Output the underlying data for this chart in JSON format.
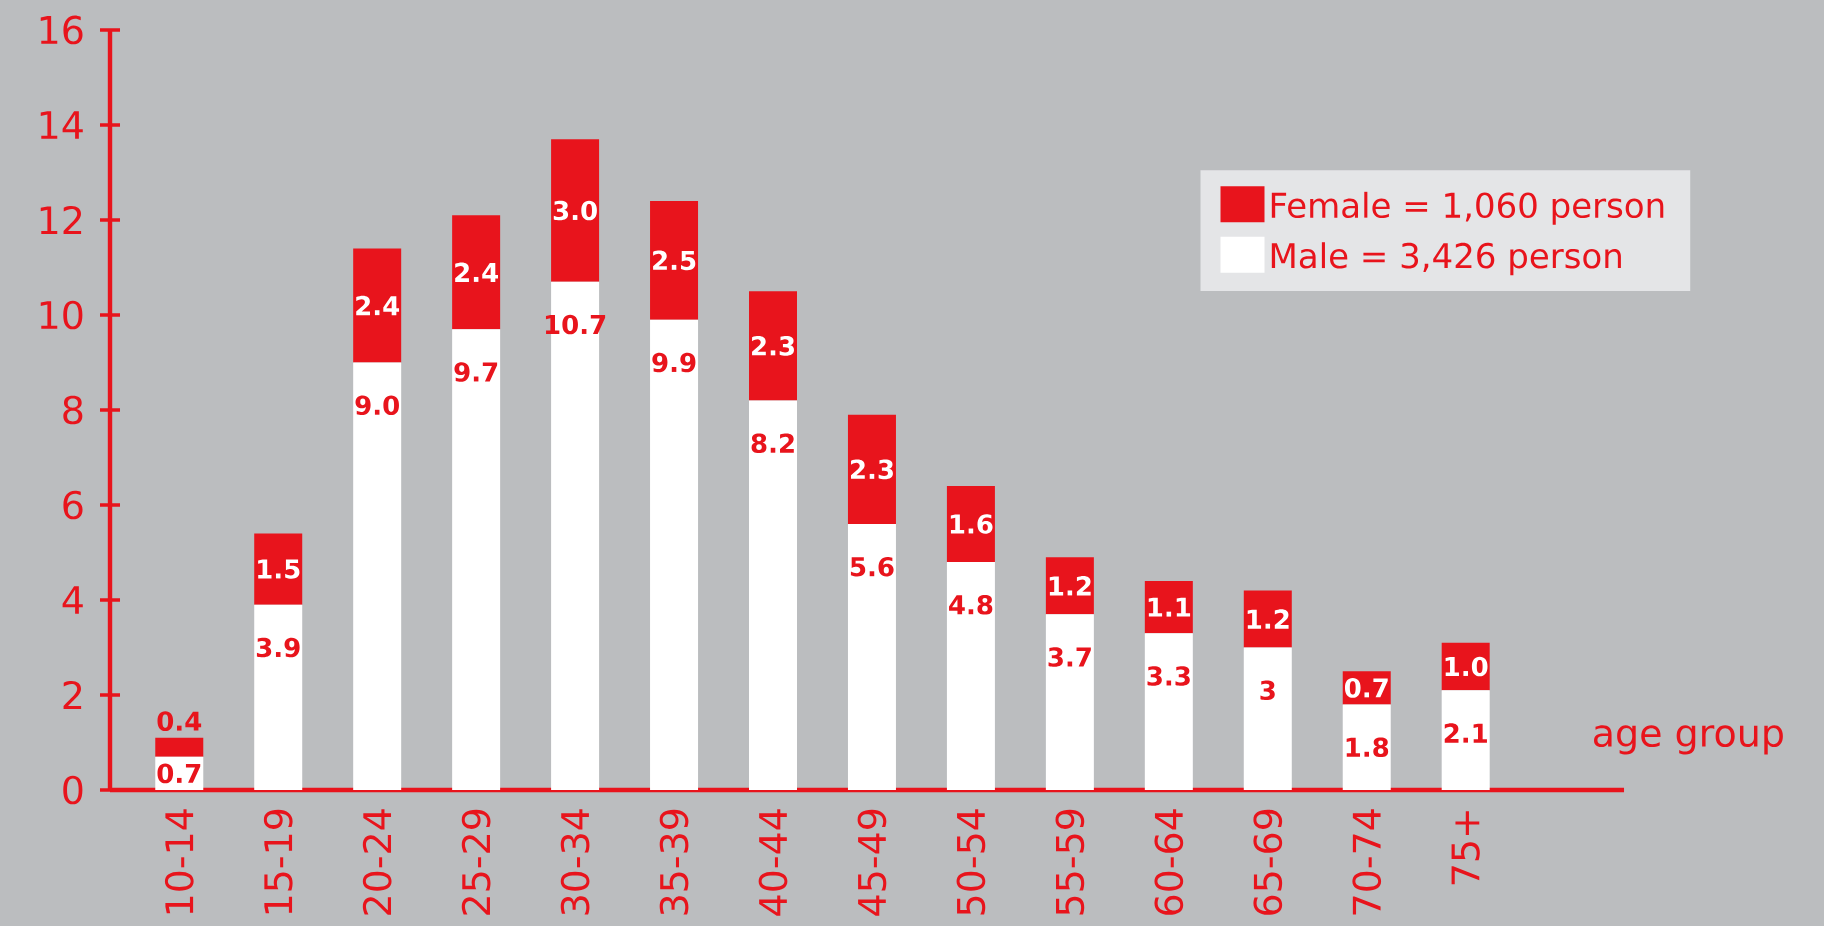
{
  "chart_data": {
    "type": "bar",
    "stacked": true,
    "xlabel": "age group",
    "legend": "top right",
    "categories": [
      "10-14",
      "15-19",
      "20-24",
      "25-29",
      "30-34",
      "35-39",
      "40-44",
      "45-49",
      "50-54",
      "55-59",
      "60-64",
      "65-69",
      "70-74",
      "75+"
    ],
    "ylim": [
      0,
      16
    ],
    "yticks": [
      0,
      2,
      4,
      6,
      8,
      10,
      12,
      14,
      16
    ],
    "series": [
      {
        "name": "Male = 3,426 person",
        "color": "#ffffff",
        "values": [
          0.7,
          3.9,
          9.0,
          9.7,
          10.7,
          9.9,
          8.2,
          5.6,
          4.8,
          3.7,
          3.3,
          3,
          1.8,
          2.1
        ],
        "value_labels": [
          "0.7",
          "3.9",
          "9.0",
          "9.7",
          "10.7",
          "9.9",
          "8.2",
          "5.6",
          "4.8",
          "3.7",
          "3.3",
          "3",
          "1.8",
          "2.1"
        ]
      },
      {
        "name": "Female = 1,060 person",
        "color": "#e8141c",
        "values": [
          0.4,
          1.5,
          2.4,
          2.4,
          3.0,
          2.5,
          2.3,
          2.3,
          1.6,
          1.2,
          1.1,
          1.2,
          0.7,
          1.0
        ],
        "value_labels": [
          "0.4",
          "1.5",
          "2.4",
          "2.4",
          "3.0",
          "2.5",
          "2.3",
          "2.3",
          "1.6",
          "1.2",
          "1.1",
          "1.2",
          "0.7",
          "1.0"
        ]
      }
    ]
  }
}
